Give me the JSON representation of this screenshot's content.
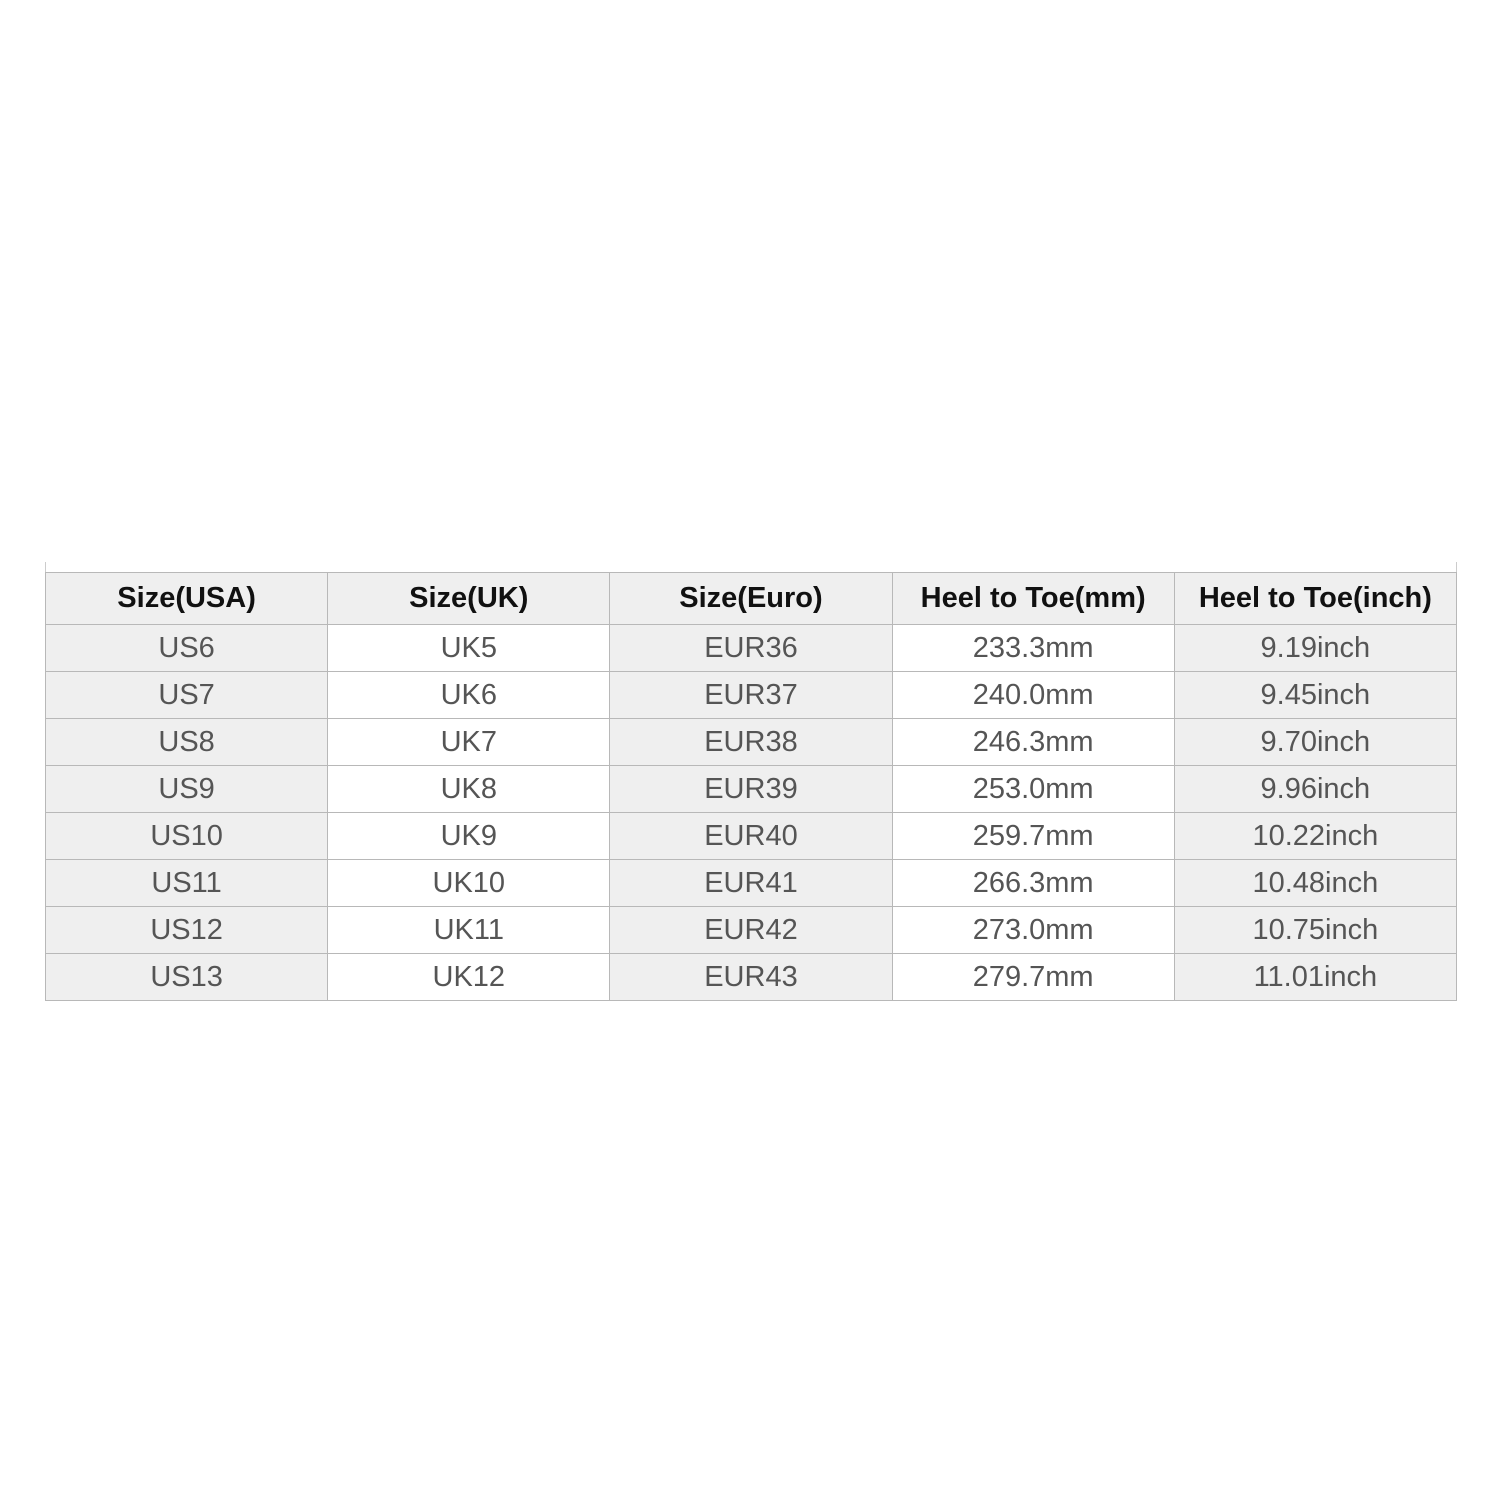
{
  "table": {
    "header": [
      "Size(USA)",
      "Size(UK)",
      "Size(Euro)",
      "Heel to Toe(mm)",
      "Heel to Toe(inch)"
    ],
    "rows": [
      [
        "US6",
        "UK5",
        "EUR36",
        "233.3mm",
        "9.19inch"
      ],
      [
        "US7",
        "UK6",
        "EUR37",
        "240.0mm",
        "9.45inch"
      ],
      [
        "US8",
        "UK7",
        "EUR38",
        "246.3mm",
        "9.70inch"
      ],
      [
        "US9",
        "UK8",
        "EUR39",
        "253.0mm",
        "9.96inch"
      ],
      [
        "US10",
        "UK9",
        "EUR40",
        "259.7mm",
        "10.22inch"
      ],
      [
        "US11",
        "UK10",
        "EUR41",
        "266.3mm",
        "10.48inch"
      ],
      [
        "US12",
        "UK11",
        "EUR42",
        "273.0mm",
        "10.75inch"
      ],
      [
        "US13",
        "UK12",
        "EUR43",
        "279.7mm",
        "11.01inch"
      ]
    ]
  }
}
